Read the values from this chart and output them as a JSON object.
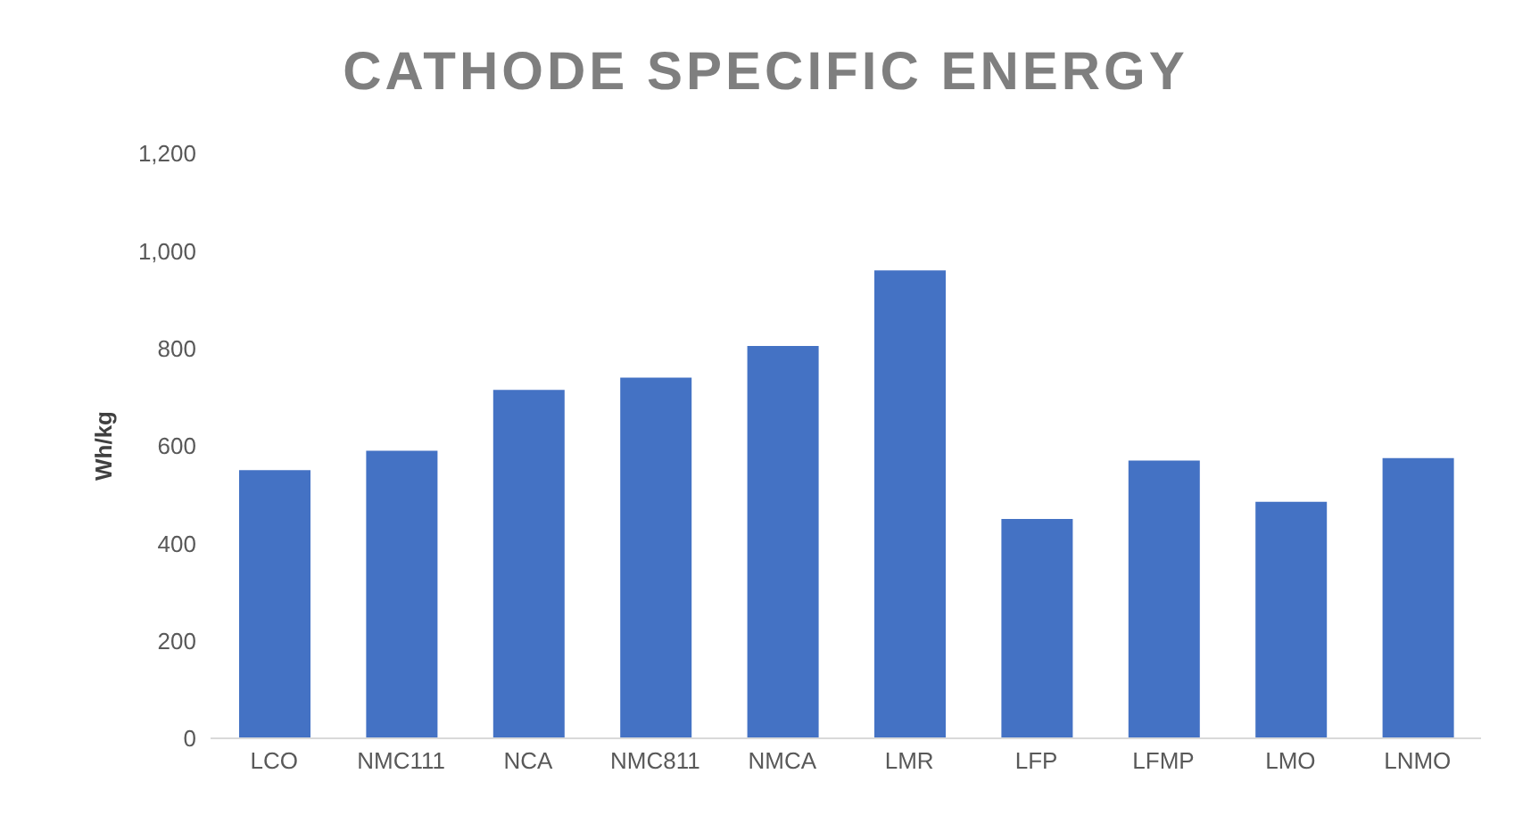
{
  "chart_data": {
    "type": "bar",
    "title": "CATHODE SPECIFIC ENERGY",
    "ylabel": "Wh/kg",
    "categories": [
      "LCO",
      "NMC111",
      "NCA",
      "NMC811",
      "NMCA",
      "LMR",
      "LFP",
      "LFMP",
      "LMO",
      "LNMO"
    ],
    "values": [
      550,
      590,
      715,
      740,
      805,
      960,
      450,
      570,
      485,
      575
    ],
    "color": "#4472c4",
    "ylim": [
      0,
      1200
    ],
    "yticks": [
      0,
      200,
      400,
      600,
      800,
      {
        "value": 1000,
        "label": "1,000"
      },
      {
        "value": 1200,
        "label": "1,200"
      }
    ],
    "grid": false,
    "legend": false
  }
}
